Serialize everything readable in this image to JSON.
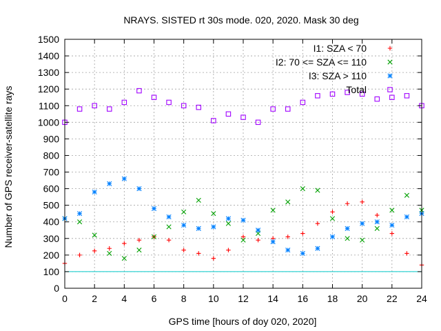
{
  "chart_data": {
    "type": "scatter",
    "title": "NRAYS. SISTED rt 30s mode. 020, 2020. Mask 30 deg",
    "xlabel": "GPS time [hours of doy 020, 2020]",
    "ylabel": "Number of GPS receiver-satellite rays",
    "xlim": [
      0,
      24
    ],
    "ylim": [
      0,
      1500
    ],
    "xticks": [
      0,
      2,
      4,
      6,
      8,
      10,
      12,
      14,
      16,
      18,
      20,
      22,
      24
    ],
    "yticks": [
      0,
      100,
      200,
      300,
      400,
      500,
      600,
      700,
      800,
      900,
      1000,
      1100,
      1200,
      1300,
      1400,
      1500
    ],
    "grid": true,
    "legend_position": "top-right",
    "reference_line": {
      "y": 100,
      "color": "#00c8c8"
    },
    "series": [
      {
        "name": "I1: SZA < 70",
        "color": "#ff0000",
        "marker": "plus",
        "x": [
          0,
          1,
          2,
          3,
          4,
          5,
          6,
          7,
          8,
          9,
          10,
          11,
          12,
          13,
          14,
          15,
          16,
          17,
          18,
          19,
          20,
          21,
          22,
          23,
          24
        ],
        "y": [
          150,
          200,
          225,
          240,
          270,
          290,
          310,
          290,
          230,
          210,
          180,
          230,
          310,
          290,
          300,
          310,
          330,
          390,
          460,
          510,
          520,
          440,
          330,
          210,
          140
        ]
      },
      {
        "name": "I2: 70 <= SZA <= 110",
        "color": "#00a000",
        "marker": "cross",
        "x": [
          0,
          1,
          2,
          3,
          4,
          5,
          6,
          7,
          8,
          9,
          10,
          11,
          12,
          13,
          14,
          15,
          16,
          17,
          18,
          19,
          20,
          21,
          22,
          23,
          24
        ],
        "y": [
          420,
          400,
          320,
          210,
          180,
          230,
          310,
          370,
          460,
          530,
          450,
          390,
          290,
          330,
          470,
          520,
          600,
          590,
          420,
          300,
          290,
          360,
          470,
          560,
          470
        ]
      },
      {
        "name": "I3: SZA > 110",
        "color": "#0080ff",
        "marker": "star",
        "x": [
          0,
          1,
          2,
          3,
          4,
          5,
          6,
          7,
          8,
          9,
          10,
          11,
          12,
          13,
          14,
          15,
          16,
          17,
          18,
          19,
          20,
          21,
          22,
          23,
          24
        ],
        "y": [
          420,
          450,
          580,
          630,
          660,
          600,
          480,
          430,
          380,
          360,
          370,
          420,
          410,
          350,
          280,
          230,
          210,
          240,
          310,
          360,
          390,
          400,
          380,
          430,
          450
        ]
      },
      {
        "name": "Total",
        "color": "#a000ff",
        "marker": "square",
        "x": [
          0,
          1,
          2,
          3,
          4,
          5,
          6,
          7,
          8,
          9,
          10,
          11,
          12,
          13,
          14,
          15,
          16,
          17,
          18,
          19,
          20,
          21,
          22,
          23,
          24
        ],
        "y": [
          1000,
          1080,
          1100,
          1080,
          1120,
          1190,
          1150,
          1120,
          1100,
          1090,
          1010,
          1050,
          1030,
          1000,
          1080,
          1080,
          1120,
          1160,
          1170,
          1180,
          1170,
          1140,
          1150,
          1160,
          1100
        ]
      }
    ]
  }
}
